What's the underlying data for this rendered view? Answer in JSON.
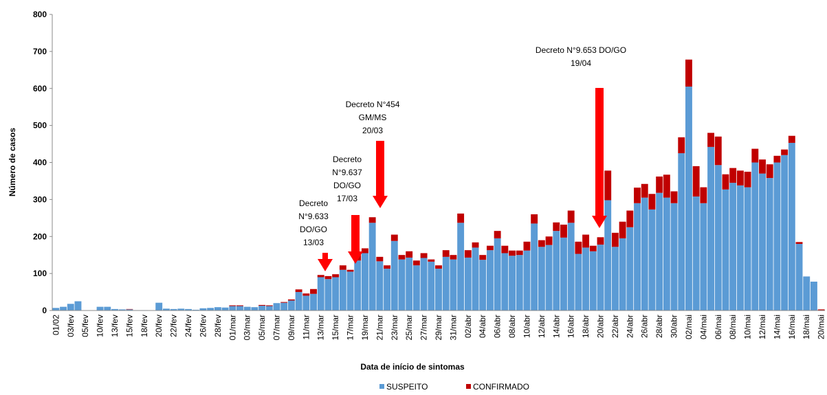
{
  "chart_data": {
    "type": "bar",
    "stacked": true,
    "x_label": "Data de início de sintomas",
    "y_label": "Número de casos",
    "ylim": [
      0,
      800
    ],
    "yticks": [
      0,
      100,
      200,
      300,
      400,
      500,
      600,
      700,
      800
    ],
    "categories": [
      "01/02",
      null,
      "03/fev",
      null,
      "05/fev",
      null,
      "10/fev",
      null,
      "13/fev",
      null,
      "15/fev",
      null,
      "18/fev",
      null,
      "20/fev",
      null,
      "22/fev",
      null,
      "24/fev",
      null,
      "26/fev",
      null,
      "28/fev",
      null,
      "01/mar",
      null,
      "03/mar",
      null,
      "05/mar",
      null,
      "07/mar",
      null,
      "09/mar",
      null,
      "11/mar",
      null,
      "13/mar",
      null,
      "15/mar",
      null,
      "17/mar",
      null,
      "19/mar",
      null,
      "21/mar",
      null,
      "23/mar",
      null,
      "25/mar",
      null,
      "27/mar",
      null,
      "29/mar",
      null,
      "31/mar",
      null,
      "02/abr",
      null,
      "04/abr",
      null,
      "06/abr",
      null,
      "08/abr",
      null,
      "10/abr",
      null,
      "12/abr",
      null,
      "14/abr",
      null,
      "16/abr",
      null,
      "18/abr",
      null,
      "20/abr",
      null,
      "22/abr",
      null,
      "24/abr",
      null,
      "26/abr",
      null,
      "28/abr",
      null,
      "30/abr",
      null,
      "02/mai",
      null,
      "04/mai",
      null,
      "06/mai",
      null,
      "08/mai",
      null,
      "10/mai",
      null,
      "12/mai",
      null,
      "14/mai",
      null,
      "16/mai",
      null,
      "18/mai",
      null,
      "20/mai"
    ],
    "series": [
      {
        "name": "SUSPEITO",
        "color": "#5b9bd5",
        "values": [
          7,
          10,
          18,
          25,
          0,
          0,
          10,
          10,
          4,
          3,
          3,
          1,
          1,
          0,
          21,
          5,
          4,
          5,
          4,
          2,
          6,
          7,
          9,
          8,
          12,
          12,
          10,
          9,
          13,
          12,
          20,
          21,
          27,
          50,
          40,
          45,
          90,
          85,
          90,
          110,
          105,
          135,
          155,
          237,
          133,
          113,
          188,
          138,
          143,
          122,
          142,
          132,
          113,
          145,
          138,
          237,
          143,
          170,
          137,
          163,
          195,
          155,
          148,
          150,
          162,
          235,
          172,
          177,
          215,
          197,
          237,
          153,
          170,
          160,
          178,
          298,
          172,
          195,
          225,
          290,
          305,
          273,
          318,
          305,
          290,
          425,
          605,
          308,
          290,
          442,
          393,
          327,
          345,
          338,
          333,
          400,
          370,
          358,
          400,
          420,
          453,
          180,
          92,
          78,
          0
        ]
      },
      {
        "name": "CONFIRMADO",
        "color": "#c00000",
        "values": [
          0,
          0,
          0,
          0,
          0,
          0,
          0,
          0,
          0,
          0,
          1,
          0,
          0,
          0,
          0,
          0,
          0,
          0,
          0,
          0,
          0,
          0,
          0,
          0,
          2,
          2,
          0,
          0,
          2,
          2,
          0,
          2,
          3,
          7,
          6,
          13,
          6,
          8,
          8,
          12,
          5,
          15,
          13,
          15,
          12,
          9,
          17,
          12,
          17,
          13,
          13,
          6,
          9,
          18,
          12,
          25,
          20,
          14,
          13,
          12,
          20,
          20,
          14,
          12,
          24,
          25,
          18,
          23,
          23,
          35,
          33,
          33,
          35,
          15,
          20,
          80,
          38,
          45,
          45,
          42,
          37,
          42,
          44,
          62,
          32,
          43,
          73,
          82,
          43,
          38,
          77,
          41,
          40,
          40,
          42,
          37,
          38,
          37,
          18,
          15,
          19,
          5,
          0,
          0,
          3
        ]
      }
    ],
    "annotations": [
      [
        "Decreto",
        "N°9.633",
        "DO/GO",
        "13/03"
      ],
      [
        "Decreto",
        "N°9.637",
        "DO/GO",
        "17/03"
      ],
      [
        "Decreto N°454",
        "GM/MS",
        "20/03"
      ],
      [
        "Decreto N°9.653 DO/GO",
        "19/04"
      ]
    ]
  }
}
